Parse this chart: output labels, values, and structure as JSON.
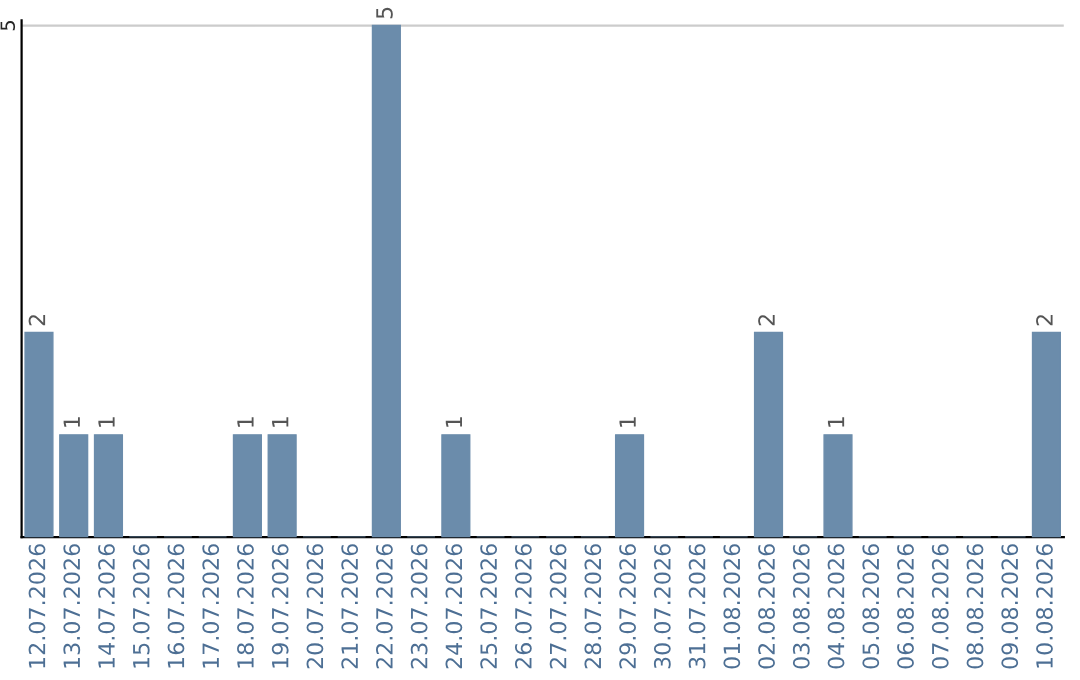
{
  "chart_data": {
    "type": "bar",
    "categories": [
      "12.07.2026",
      "13.07.2026",
      "14.07.2026",
      "15.07.2026",
      "16.07.2026",
      "17.07.2026",
      "18.07.2026",
      "19.07.2026",
      "20.07.2026",
      "21.07.2026",
      "22.07.2026",
      "23.07.2026",
      "24.07.2026",
      "25.07.2026",
      "26.07.2026",
      "27.07.2026",
      "28.07.2026",
      "29.07.2026",
      "30.07.2026",
      "31.07.2026",
      "01.08.2026",
      "02.08.2026",
      "03.08.2026",
      "04.08.2026",
      "05.08.2026",
      "06.08.2026",
      "07.08.2026",
      "08.08.2026",
      "09.08.2026",
      "10.08.2026"
    ],
    "values": [
      2,
      1,
      1,
      0,
      0,
      0,
      1,
      1,
      0,
      0,
      5,
      0,
      1,
      0,
      0,
      0,
      0,
      1,
      0,
      0,
      0,
      2,
      0,
      1,
      0,
      0,
      0,
      0,
      0,
      2
    ],
    "value_labels": [
      "2",
      "1",
      "1",
      null,
      null,
      null,
      "1",
      "1",
      null,
      null,
      "5",
      null,
      "1",
      null,
      null,
      null,
      null,
      "1",
      null,
      null,
      null,
      "2",
      null,
      "1",
      null,
      null,
      null,
      null,
      null,
      "2"
    ],
    "color": "#6b8cab",
    "ylim": [
      0,
      5.05
    ],
    "yticks": [
      5
    ],
    "grid": "y"
  }
}
